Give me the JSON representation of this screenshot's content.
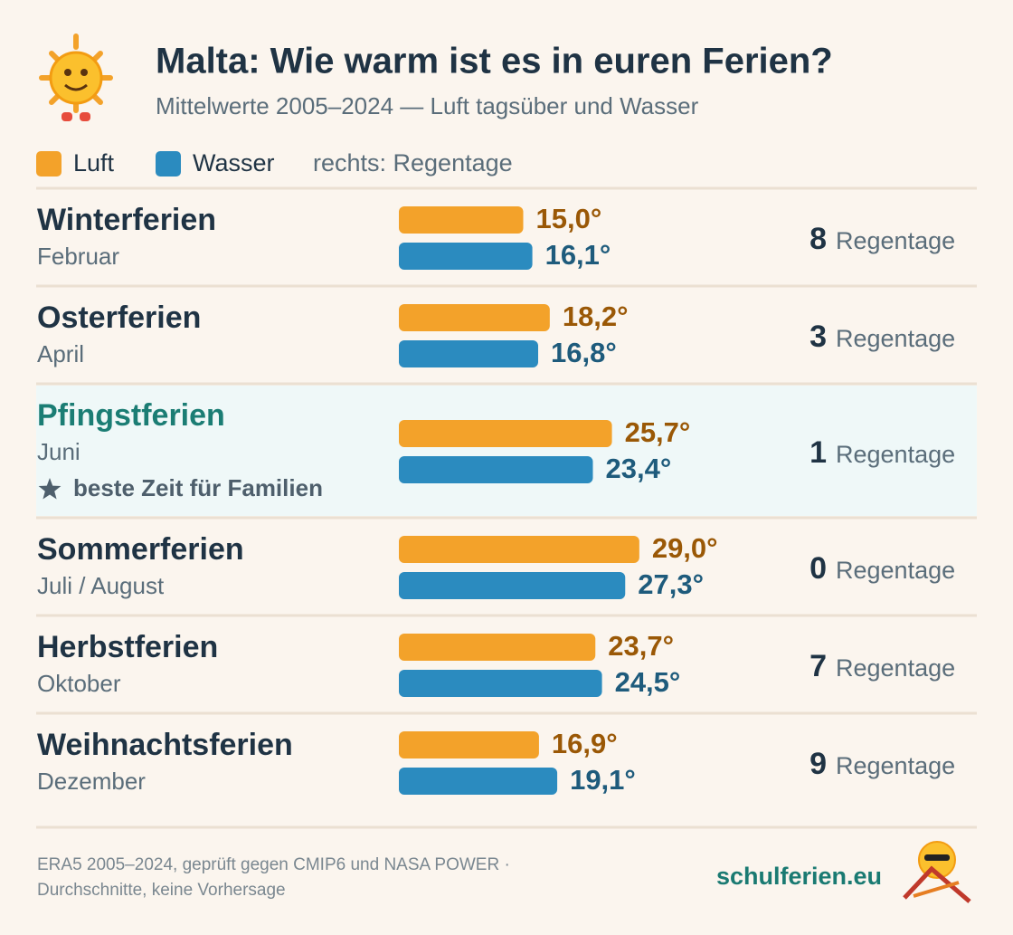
{
  "header": {
    "title": "Malta: Wie warm ist es in euren Ferien?",
    "subtitle": "Mittelwerte 2005–2024 — Luft tagsüber und Wasser"
  },
  "chart_data": {
    "type": "bar",
    "legend_note": "rechts: Regentage",
    "categories": [
      "Winterferien",
      "Osterferien",
      "Pfingstferien",
      "Sommerferien",
      "Herbstferien",
      "Weihnachtsferien"
    ],
    "months": [
      "Februar",
      "April",
      "Juni",
      "Juli / August",
      "Oktober",
      "Dezember"
    ],
    "highlight": {
      "category": "Pfingstferien",
      "label": "beste Zeit für Familien"
    },
    "xlim": [
      0,
      30
    ],
    "series": [
      {
        "name": "Luft",
        "color": "#f3a22a",
        "label_color": "#9a5806",
        "values": [
          15.0,
          18.2,
          25.7,
          29.0,
          23.7,
          16.9
        ],
        "value_labels": [
          "15,0°",
          "18,2°",
          "25,7°",
          "29,0°",
          "23,7°",
          "16,9°"
        ]
      },
      {
        "name": "Wasser",
        "color": "#2b8bbf",
        "label_color": "#1e5b7c",
        "values": [
          16.1,
          16.8,
          23.4,
          27.3,
          24.5,
          19.1
        ],
        "value_labels": [
          "16,1°",
          "16,8°",
          "23,4°",
          "27,3°",
          "24,5°",
          "19,1°"
        ]
      }
    ],
    "rain_days": {
      "label": "Regentage",
      "values": [
        8,
        3,
        1,
        0,
        7,
        9
      ]
    }
  },
  "footer": {
    "source": [
      "ERA5 2005–2024, geprüft gegen CMIP6 und NASA POWER ·",
      "Durchschnitte, keine Vorhersage"
    ],
    "brand": "schulferien.eu"
  }
}
